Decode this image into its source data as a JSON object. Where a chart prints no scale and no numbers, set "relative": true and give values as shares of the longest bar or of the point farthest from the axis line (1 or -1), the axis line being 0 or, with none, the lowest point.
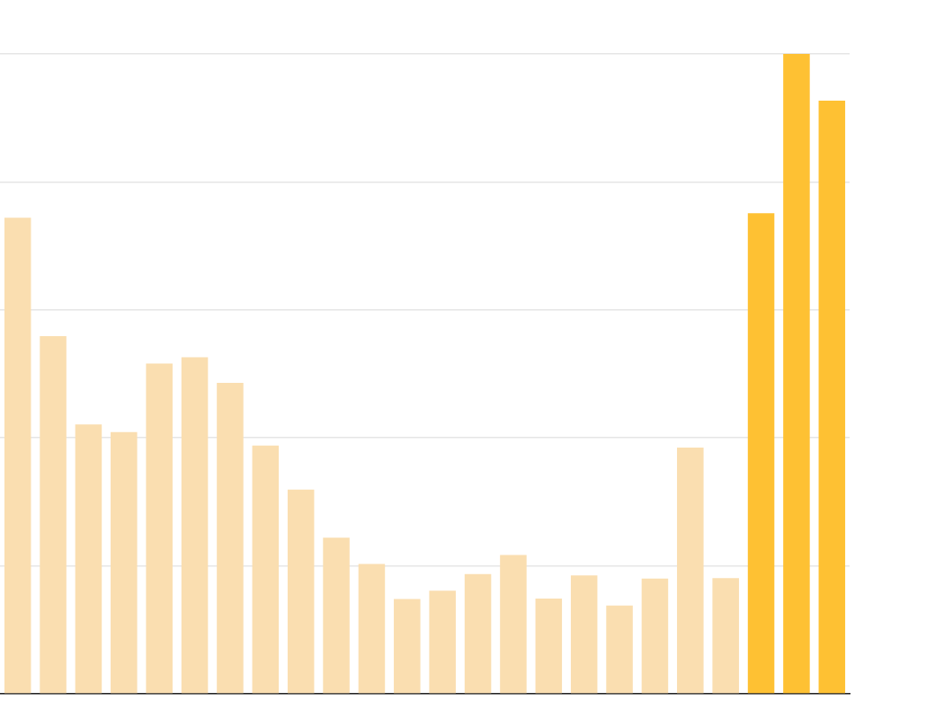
{
  "chart_data": {
    "type": "bar",
    "relative": true,
    "grid": "y",
    "categories": [
      null,
      null,
      null,
      null,
      null,
      null,
      null,
      null,
      null,
      null,
      null,
      null,
      null,
      null,
      null,
      null,
      null,
      null,
      null,
      null,
      null,
      null,
      null,
      null
    ],
    "values": [
      0.744,
      0.559,
      0.421,
      0.409,
      0.516,
      0.526,
      0.486,
      0.388,
      0.319,
      0.244,
      0.203,
      0.148,
      0.161,
      0.187,
      0.217,
      0.149,
      0.185,
      0.138,
      0.18,
      0.385,
      0.181,
      0.751,
      1,
      0.927
    ],
    "colors": [
      "#fadeb0",
      "#fadeb0",
      "#fadeb0",
      "#fadeb0",
      "#fadeb0",
      "#fadeb0",
      "#fadeb0",
      "#fadeb0",
      "#fadeb0",
      "#fadeb0",
      "#fadeb0",
      "#fadeb0",
      "#fadeb0",
      "#fadeb0",
      "#fadeb0",
      "#fadeb0",
      "#fadeb0",
      "#fadeb0",
      "#fadeb0",
      "#fadeb0",
      "#fadeb0",
      "#fec133",
      "#fec133",
      "#fec133"
    ]
  }
}
